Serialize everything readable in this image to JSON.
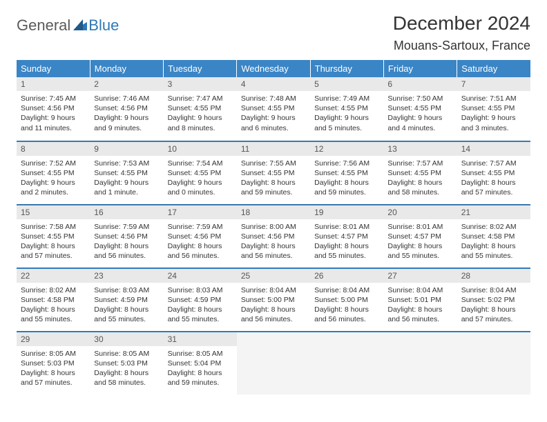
{
  "logo": {
    "general": "General",
    "blue": "Blue"
  },
  "title": "December 2024",
  "location": "Mouans-Sartoux, France",
  "colors": {
    "header_bg": "#3a85c6",
    "header_text": "#ffffff",
    "daynum_bg": "#e9e9e9",
    "border": "#2f6ea3",
    "logo_general": "#5a5a5a",
    "logo_blue": "#2f78b7"
  },
  "weekdays": [
    "Sunday",
    "Monday",
    "Tuesday",
    "Wednesday",
    "Thursday",
    "Friday",
    "Saturday"
  ],
  "days": [
    {
      "n": "1",
      "sr": "Sunrise: 7:45 AM",
      "ss": "Sunset: 4:56 PM",
      "d1": "Daylight: 9 hours",
      "d2": "and 11 minutes."
    },
    {
      "n": "2",
      "sr": "Sunrise: 7:46 AM",
      "ss": "Sunset: 4:56 PM",
      "d1": "Daylight: 9 hours",
      "d2": "and 9 minutes."
    },
    {
      "n": "3",
      "sr": "Sunrise: 7:47 AM",
      "ss": "Sunset: 4:55 PM",
      "d1": "Daylight: 9 hours",
      "d2": "and 8 minutes."
    },
    {
      "n": "4",
      "sr": "Sunrise: 7:48 AM",
      "ss": "Sunset: 4:55 PM",
      "d1": "Daylight: 9 hours",
      "d2": "and 6 minutes."
    },
    {
      "n": "5",
      "sr": "Sunrise: 7:49 AM",
      "ss": "Sunset: 4:55 PM",
      "d1": "Daylight: 9 hours",
      "d2": "and 5 minutes."
    },
    {
      "n": "6",
      "sr": "Sunrise: 7:50 AM",
      "ss": "Sunset: 4:55 PM",
      "d1": "Daylight: 9 hours",
      "d2": "and 4 minutes."
    },
    {
      "n": "7",
      "sr": "Sunrise: 7:51 AM",
      "ss": "Sunset: 4:55 PM",
      "d1": "Daylight: 9 hours",
      "d2": "and 3 minutes."
    },
    {
      "n": "8",
      "sr": "Sunrise: 7:52 AM",
      "ss": "Sunset: 4:55 PM",
      "d1": "Daylight: 9 hours",
      "d2": "and 2 minutes."
    },
    {
      "n": "9",
      "sr": "Sunrise: 7:53 AM",
      "ss": "Sunset: 4:55 PM",
      "d1": "Daylight: 9 hours",
      "d2": "and 1 minute."
    },
    {
      "n": "10",
      "sr": "Sunrise: 7:54 AM",
      "ss": "Sunset: 4:55 PM",
      "d1": "Daylight: 9 hours",
      "d2": "and 0 minutes."
    },
    {
      "n": "11",
      "sr": "Sunrise: 7:55 AM",
      "ss": "Sunset: 4:55 PM",
      "d1": "Daylight: 8 hours",
      "d2": "and 59 minutes."
    },
    {
      "n": "12",
      "sr": "Sunrise: 7:56 AM",
      "ss": "Sunset: 4:55 PM",
      "d1": "Daylight: 8 hours",
      "d2": "and 59 minutes."
    },
    {
      "n": "13",
      "sr": "Sunrise: 7:57 AM",
      "ss": "Sunset: 4:55 PM",
      "d1": "Daylight: 8 hours",
      "d2": "and 58 minutes."
    },
    {
      "n": "14",
      "sr": "Sunrise: 7:57 AM",
      "ss": "Sunset: 4:55 PM",
      "d1": "Daylight: 8 hours",
      "d2": "and 57 minutes."
    },
    {
      "n": "15",
      "sr": "Sunrise: 7:58 AM",
      "ss": "Sunset: 4:55 PM",
      "d1": "Daylight: 8 hours",
      "d2": "and 57 minutes."
    },
    {
      "n": "16",
      "sr": "Sunrise: 7:59 AM",
      "ss": "Sunset: 4:56 PM",
      "d1": "Daylight: 8 hours",
      "d2": "and 56 minutes."
    },
    {
      "n": "17",
      "sr": "Sunrise: 7:59 AM",
      "ss": "Sunset: 4:56 PM",
      "d1": "Daylight: 8 hours",
      "d2": "and 56 minutes."
    },
    {
      "n": "18",
      "sr": "Sunrise: 8:00 AM",
      "ss": "Sunset: 4:56 PM",
      "d1": "Daylight: 8 hours",
      "d2": "and 56 minutes."
    },
    {
      "n": "19",
      "sr": "Sunrise: 8:01 AM",
      "ss": "Sunset: 4:57 PM",
      "d1": "Daylight: 8 hours",
      "d2": "and 55 minutes."
    },
    {
      "n": "20",
      "sr": "Sunrise: 8:01 AM",
      "ss": "Sunset: 4:57 PM",
      "d1": "Daylight: 8 hours",
      "d2": "and 55 minutes."
    },
    {
      "n": "21",
      "sr": "Sunrise: 8:02 AM",
      "ss": "Sunset: 4:58 PM",
      "d1": "Daylight: 8 hours",
      "d2": "and 55 minutes."
    },
    {
      "n": "22",
      "sr": "Sunrise: 8:02 AM",
      "ss": "Sunset: 4:58 PM",
      "d1": "Daylight: 8 hours",
      "d2": "and 55 minutes."
    },
    {
      "n": "23",
      "sr": "Sunrise: 8:03 AM",
      "ss": "Sunset: 4:59 PM",
      "d1": "Daylight: 8 hours",
      "d2": "and 55 minutes."
    },
    {
      "n": "24",
      "sr": "Sunrise: 8:03 AM",
      "ss": "Sunset: 4:59 PM",
      "d1": "Daylight: 8 hours",
      "d2": "and 55 minutes."
    },
    {
      "n": "25",
      "sr": "Sunrise: 8:04 AM",
      "ss": "Sunset: 5:00 PM",
      "d1": "Daylight: 8 hours",
      "d2": "and 56 minutes."
    },
    {
      "n": "26",
      "sr": "Sunrise: 8:04 AM",
      "ss": "Sunset: 5:00 PM",
      "d1": "Daylight: 8 hours",
      "d2": "and 56 minutes."
    },
    {
      "n": "27",
      "sr": "Sunrise: 8:04 AM",
      "ss": "Sunset: 5:01 PM",
      "d1": "Daylight: 8 hours",
      "d2": "and 56 minutes."
    },
    {
      "n": "28",
      "sr": "Sunrise: 8:04 AM",
      "ss": "Sunset: 5:02 PM",
      "d1": "Daylight: 8 hours",
      "d2": "and 57 minutes."
    },
    {
      "n": "29",
      "sr": "Sunrise: 8:05 AM",
      "ss": "Sunset: 5:03 PM",
      "d1": "Daylight: 8 hours",
      "d2": "and 57 minutes."
    },
    {
      "n": "30",
      "sr": "Sunrise: 8:05 AM",
      "ss": "Sunset: 5:03 PM",
      "d1": "Daylight: 8 hours",
      "d2": "and 58 minutes."
    },
    {
      "n": "31",
      "sr": "Sunrise: 8:05 AM",
      "ss": "Sunset: 5:04 PM",
      "d1": "Daylight: 8 hours",
      "d2": "and 59 minutes."
    }
  ]
}
